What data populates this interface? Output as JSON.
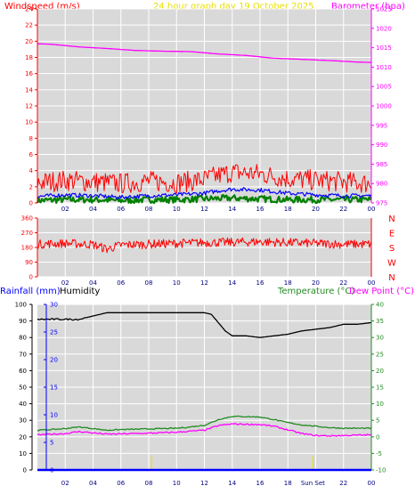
{
  "header": {
    "title": "24 hour graph day   19 October 2025",
    "left_label": "Windspeed (m/s)",
    "right_label": "Barometer (hpa)"
  },
  "bottom_header": {
    "rainfall_label": "Rainfall (mm)",
    "humidity_label": "Humidity",
    "temperature_label": "Temperature (°C)",
    "dewpoint_label": "Dew Point (°C)"
  },
  "colors": {
    "wind": "#ff0000",
    "gust": "#ff0000",
    "avg_wind": "#0000ff",
    "wind_low": "#008000",
    "barometer": "#ff00ff",
    "direction": "#ff0000",
    "humidity": "#000000",
    "temperature": "#228b22",
    "dewpoint": "#ff00ff",
    "rain": "#0000ff",
    "sun_marker": "#e8e000",
    "title": "#e8e000"
  },
  "chart_data": [
    {
      "type": "line",
      "name": "wind-barometer",
      "title": "24 hour graph day   19 October 2025",
      "xlabel": "",
      "x_ticks": [
        "02",
        "04",
        "06",
        "08",
        "10",
        "12",
        "14",
        "16",
        "18",
        "20",
        "22",
        "00"
      ],
      "ylabel_left": "Windspeed (m/s)",
      "ylim_left": [
        0,
        24
      ],
      "yticks_left": [
        "0",
        "2",
        "4",
        "6",
        "8",
        "10",
        "12",
        "14",
        "16",
        "18",
        "20",
        "22",
        "24"
      ],
      "ylabel_right": "Barometer (hpa)",
      "ylim_right": [
        975,
        1025
      ],
      "yticks_right": [
        "975",
        "980",
        "985",
        "990",
        "995",
        "1000",
        "1005",
        "1010",
        "1015",
        "1020",
        "1025"
      ],
      "grid": true,
      "series": [
        {
          "key": "gust",
          "axis": "left",
          "x": [
            0,
            2,
            4,
            6,
            8,
            10,
            12,
            13,
            14,
            16,
            18,
            20,
            22,
            24
          ],
          "values": [
            2.5,
            2.8,
            2.6,
            2.4,
            2.7,
            2.5,
            2.9,
            3.4,
            3.8,
            3.6,
            3.0,
            2.8,
            2.6,
            2.4
          ]
        },
        {
          "key": "avg",
          "axis": "left",
          "x": [
            0,
            2,
            4,
            6,
            8,
            10,
            12,
            13,
            14,
            16,
            18,
            20,
            22,
            24
          ],
          "values": [
            0.8,
            1.0,
            0.9,
            0.7,
            0.9,
            1.0,
            1.2,
            1.5,
            1.7,
            1.6,
            1.2,
            1.0,
            0.9,
            0.9
          ]
        },
        {
          "key": "low",
          "axis": "left",
          "x": [
            0,
            2,
            4,
            6,
            8,
            10,
            12,
            14,
            16,
            18,
            20,
            22,
            24
          ],
          "values": [
            0.3,
            0.4,
            0.4,
            0.3,
            0.4,
            0.4,
            0.5,
            0.6,
            0.5,
            0.4,
            0.4,
            0.4,
            0.4
          ]
        },
        {
          "key": "barometer",
          "axis": "right",
          "x": [
            0,
            1,
            3,
            5,
            7,
            9,
            11,
            13,
            15,
            17,
            19,
            21,
            23,
            24
          ],
          "values": [
            1016.0,
            1015.9,
            1015.2,
            1014.8,
            1014.3,
            1014.1,
            1014.0,
            1013.4,
            1013.0,
            1012.3,
            1012.0,
            1011.7,
            1011.3,
            1011.2
          ]
        }
      ]
    },
    {
      "type": "scatter",
      "name": "wind-direction",
      "x_ticks": [
        "02",
        "04",
        "06",
        "08",
        "10",
        "12",
        "14",
        "16",
        "18",
        "20",
        "22",
        "00"
      ],
      "ylim": [
        0,
        360
      ],
      "yticks": [
        "0",
        "90",
        "180",
        "270",
        "360"
      ],
      "direction_labels": [
        "N",
        "W",
        "S",
        "E",
        "N"
      ],
      "grid": true,
      "series": [
        {
          "key": "direction",
          "x": [
            0,
            2,
            4,
            5,
            6,
            8,
            10,
            12,
            14,
            16,
            18,
            20,
            22,
            24
          ],
          "values": [
            200,
            205,
            198,
            170,
            195,
            200,
            205,
            210,
            212,
            215,
            210,
            205,
            200,
            200
          ]
        }
      ]
    },
    {
      "type": "line",
      "name": "temp-humidity-rain",
      "x_ticks": [
        "02",
        "04",
        "06",
        "08",
        "10",
        "12",
        "14",
        "16",
        "18",
        "20",
        "22",
        "00"
      ],
      "sun_labels": [
        "Sun Set"
      ],
      "sun_times": [
        8.2,
        19.8
      ],
      "ylabel_left": "Humidity",
      "ylim_humidity": [
        0,
        100
      ],
      "yticks_humidity": [
        "0",
        "10",
        "20",
        "30",
        "40",
        "50",
        "60",
        "70",
        "80",
        "90",
        "100"
      ],
      "ylabel_rain": "Rainfall (mm)",
      "ylim_rain": [
        0,
        30
      ],
      "yticks_rain": [
        "0",
        "5",
        "10",
        "15",
        "20",
        "25",
        "30"
      ],
      "ylabel_right": "Temperature (°C)",
      "ylim_temp": [
        -10,
        40
      ],
      "yticks_temp": [
        "-10",
        "-5",
        "0",
        "5",
        "10",
        "15",
        "20",
        "25",
        "30",
        "35",
        "40"
      ],
      "grid": true,
      "series": [
        {
          "key": "humidity",
          "axis": "humidity",
          "x": [
            0,
            3,
            4,
            5,
            12,
            12.5,
            13,
            13.5,
            14,
            15,
            16,
            17,
            18,
            19,
            20,
            21,
            22,
            23,
            24
          ],
          "values": [
            91,
            91,
            93,
            95,
            95,
            94,
            89,
            84,
            81,
            81,
            80,
            81,
            82,
            84,
            85,
            86,
            88,
            88,
            89
          ]
        },
        {
          "key": "temperature",
          "axis": "temp",
          "x": [
            0,
            1,
            2,
            3,
            4,
            5,
            6,
            8,
            10,
            11,
            12,
            13,
            14,
            16,
            17,
            18,
            19,
            20,
            21,
            22,
            24
          ],
          "values": [
            2.0,
            2.2,
            2.5,
            3.0,
            2.5,
            2.0,
            2.2,
            2.4,
            2.6,
            3.0,
            3.5,
            5.2,
            6.2,
            6.0,
            5.2,
            4.3,
            3.6,
            3.2,
            2.8,
            2.6,
            2.6
          ]
        },
        {
          "key": "dewpoint",
          "axis": "temp",
          "x": [
            0,
            2,
            3,
            4,
            5,
            6,
            8,
            10,
            12,
            13,
            14,
            16,
            17,
            18,
            19,
            20,
            21,
            22,
            24
          ],
          "values": [
            0.6,
            1.0,
            1.6,
            1.2,
            0.8,
            0.9,
            1.1,
            1.4,
            2.0,
            3.4,
            3.9,
            3.7,
            3.2,
            2.1,
            1.0,
            0.4,
            0.3,
            0.4,
            0.6
          ]
        },
        {
          "key": "rain",
          "axis": "rain",
          "x": [
            0,
            24
          ],
          "values": [
            0,
            0
          ]
        }
      ]
    }
  ]
}
